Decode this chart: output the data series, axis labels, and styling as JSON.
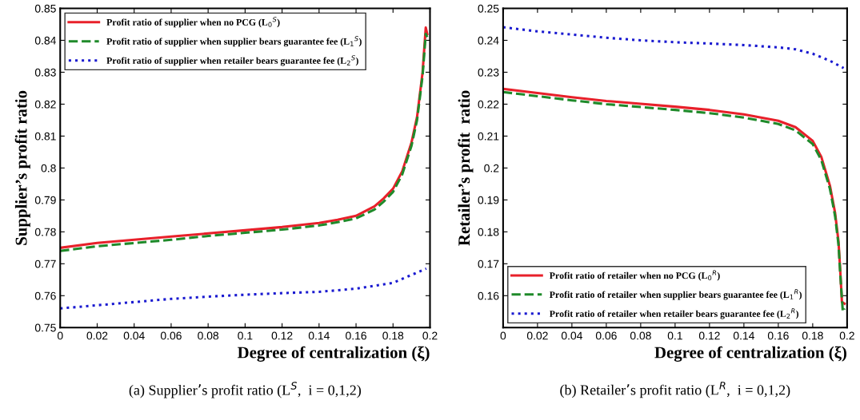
{
  "chart_data": [
    {
      "type": "line",
      "xlabel": "Degree of centralization (ξ)",
      "ylabel": "Supplier’s profit ratio",
      "annotations": [
        "(a) Supplier’s profit ratio (L$^{S}$,  i = 0,1,2)"
      ],
      "xlim": [
        0,
        0.2
      ],
      "ylim": [
        0.75,
        0.85
      ],
      "xticks": [
        0,
        0.02,
        0.04,
        0.06,
        0.08,
        0.1,
        0.12,
        0.14,
        0.16,
        0.18,
        0.2
      ],
      "yticks": [
        0.75,
        0.76,
        0.77,
        0.78,
        0.79,
        0.8,
        0.81,
        0.82,
        0.83,
        0.84,
        0.85
      ],
      "grid": false,
      "legend": "top left",
      "series": [
        {
          "name": "Profit ratio of supplier when no PCG (L$_{0}$$^{S}$)",
          "color": "#e8202a",
          "line_style": "solid",
          "x": [
            0,
            0.02,
            0.04,
            0.06,
            0.08,
            0.1,
            0.12,
            0.14,
            0.15,
            0.16,
            0.17,
            0.175,
            0.18,
            0.185,
            0.19,
            0.193,
            0.196,
            0.1977,
            0.1985
          ],
          "values": [
            0.775,
            0.7765,
            0.7775,
            0.7785,
            0.7795,
            0.7805,
            0.7815,
            0.7828,
            0.7838,
            0.785,
            0.788,
            0.7905,
            0.7935,
            0.799,
            0.808,
            0.816,
            0.83,
            0.844,
            0.842
          ]
        },
        {
          "name": "Profit ratio of supplier when supplier bears guarantee fee (L$_{1}$$^{S}$)",
          "color": "#1f8a2a",
          "line_style": "dashed",
          "x": [
            0,
            0.02,
            0.04,
            0.06,
            0.08,
            0.1,
            0.12,
            0.14,
            0.15,
            0.16,
            0.17,
            0.175,
            0.18,
            0.185,
            0.19,
            0.193,
            0.196,
            0.1977,
            0.1985
          ],
          "values": [
            0.774,
            0.7755,
            0.7765,
            0.7775,
            0.7787,
            0.7797,
            0.7807,
            0.782,
            0.783,
            0.7842,
            0.787,
            0.7895,
            0.7925,
            0.798,
            0.807,
            0.815,
            0.829,
            0.842,
            0.841
          ]
        },
        {
          "name": "Profit ratio of supplier when retailer bears guarantee fee (L$_{2}$$^{S}$)",
          "color": "#1a1ad0",
          "line_style": "dotted",
          "x": [
            0,
            0.02,
            0.04,
            0.06,
            0.08,
            0.1,
            0.12,
            0.14,
            0.16,
            0.18,
            0.19,
            0.198
          ],
          "values": [
            0.756,
            0.757,
            0.758,
            0.759,
            0.7597,
            0.7603,
            0.7608,
            0.7612,
            0.7622,
            0.764,
            0.7665,
            0.7685
          ]
        }
      ]
    },
    {
      "type": "line",
      "xlabel": "Degree of centralization (ξ)",
      "ylabel": "Retailer’s profit  ratio",
      "annotations": [
        "(b) Retailer’s profit ratio (L$^{R}$,  i = 0,1,2)"
      ],
      "xlim": [
        0,
        0.2
      ],
      "ylim": [
        0.15,
        0.25
      ],
      "xticks": [
        0,
        0.02,
        0.04,
        0.06,
        0.08,
        0.1,
        0.12,
        0.14,
        0.16,
        0.18,
        0.2
      ],
      "yticks": [
        {
          "value": 0.15,
          "label": null
        },
        0.16,
        0.17,
        0.18,
        0.19,
        0.2,
        0.21,
        0.22,
        0.23,
        0.24,
        0.25
      ],
      "grid": false,
      "legend": "bottom left",
      "series": [
        {
          "name": "Profit ratio of retailer when no PCG (L$_{0}$$^{R}$)",
          "color": "#e8202a",
          "line_style": "solid",
          "x": [
            0,
            0.02,
            0.04,
            0.06,
            0.08,
            0.1,
            0.12,
            0.14,
            0.16,
            0.17,
            0.18,
            0.185,
            0.19,
            0.193,
            0.195,
            0.196,
            0.197,
            0.1985
          ],
          "values": [
            0.2248,
            0.2235,
            0.2222,
            0.221,
            0.2201,
            0.2192,
            0.2182,
            0.2168,
            0.2148,
            0.2128,
            0.2085,
            0.2035,
            0.1945,
            0.186,
            0.177,
            0.168,
            0.158,
            0.1575
          ]
        },
        {
          "name": "Profit ratio of retailer when supplier bears guarantee fee (L$_{1}$$^{R}$)",
          "color": "#1f8a2a",
          "line_style": "dashed",
          "x": [
            0,
            0.02,
            0.04,
            0.06,
            0.08,
            0.1,
            0.12,
            0.14,
            0.16,
            0.17,
            0.18,
            0.185,
            0.19,
            0.193,
            0.195,
            0.196,
            0.1975,
            0.1985
          ],
          "values": [
            0.2238,
            0.2225,
            0.2212,
            0.22,
            0.2191,
            0.2182,
            0.2172,
            0.2158,
            0.2138,
            0.2118,
            0.2075,
            0.2025,
            0.1935,
            0.185,
            0.176,
            0.167,
            0.155,
            0.156
          ]
        },
        {
          "name": "Profit ratio of retailer when retailer bears guarantee fee (L$_{2}$$^{R}$)",
          "color": "#1a1ad0",
          "line_style": "dotted",
          "x": [
            0,
            0.02,
            0.04,
            0.06,
            0.08,
            0.1,
            0.12,
            0.14,
            0.16,
            0.17,
            0.18,
            0.19,
            0.198
          ],
          "values": [
            0.2441,
            0.2428,
            0.2418,
            0.2408,
            0.24,
            0.2394,
            0.239,
            0.2385,
            0.2378,
            0.2372,
            0.2358,
            0.2336,
            0.2313
          ]
        }
      ]
    }
  ]
}
